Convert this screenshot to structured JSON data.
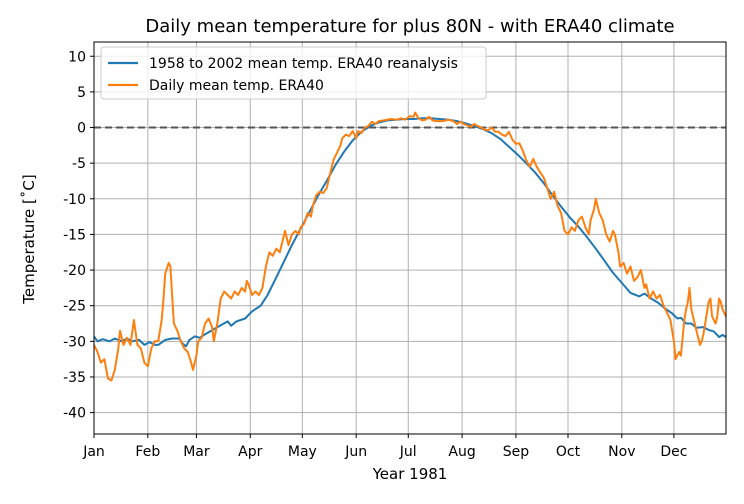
{
  "chart_data": {
    "type": "line",
    "title": "Daily mean temperature for plus 80N - with ERA40 climate",
    "xlabel": "Year 1981",
    "ylabel": "Temperature [$^\\circ$C]",
    "ylabel_display": "Temperature [˚C]",
    "xlim_days": [
      1,
      365
    ],
    "ylim": [
      -43,
      12
    ],
    "yticks": [
      10,
      5,
      0,
      -5,
      -10,
      -15,
      -20,
      -25,
      -30,
      -35,
      -40
    ],
    "xticks": [
      {
        "day": 1,
        "label": "Jan"
      },
      {
        "day": 32,
        "label": "Feb"
      },
      {
        "day": 60,
        "label": "Mar"
      },
      {
        "day": 91,
        "label": "Apr"
      },
      {
        "day": 121,
        "label": "May"
      },
      {
        "day": 152,
        "label": "Jun"
      },
      {
        "day": 182,
        "label": "Jul"
      },
      {
        "day": 213,
        "label": "Aug"
      },
      {
        "day": 244,
        "label": "Sep"
      },
      {
        "day": 274,
        "label": "Oct"
      },
      {
        "day": 305,
        "label": "Nov"
      },
      {
        "day": 335,
        "label": "Dec"
      }
    ],
    "grid": true,
    "legend_position": "upper-left",
    "reference_line": {
      "y": 0,
      "style": "dashed",
      "color": "#555555"
    },
    "series": [
      {
        "name": "1958 to 2002 mean temp. ERA40 reanalysis",
        "color": "#1f77b4",
        "points": [
          [
            1,
            -29.3
          ],
          [
            3,
            -30.0
          ],
          [
            6,
            -29.7
          ],
          [
            10,
            -30.0
          ],
          [
            13,
            -29.6
          ],
          [
            17,
            -30.0
          ],
          [
            20,
            -29.6
          ],
          [
            23,
            -30.0
          ],
          [
            27,
            -29.8
          ],
          [
            30,
            -30.5
          ],
          [
            33,
            -30.1
          ],
          [
            36,
            -30.5
          ],
          [
            38,
            -30.5
          ],
          [
            42,
            -29.8
          ],
          [
            46,
            -29.6
          ],
          [
            50,
            -29.6
          ],
          [
            52,
            -30.3
          ],
          [
            54,
            -30.7
          ],
          [
            56,
            -29.8
          ],
          [
            59,
            -29.3
          ],
          [
            62,
            -29.5
          ],
          [
            65,
            -29.0
          ],
          [
            70,
            -28.3
          ],
          [
            75,
            -27.6
          ],
          [
            78,
            -27.2
          ],
          [
            80,
            -27.8
          ],
          [
            83,
            -27.2
          ],
          [
            88,
            -26.8
          ],
          [
            92,
            -25.8
          ],
          [
            97,
            -25.0
          ],
          [
            101,
            -23.5
          ],
          [
            105,
            -21.5
          ],
          [
            110,
            -19.0
          ],
          [
            115,
            -16.5
          ],
          [
            120,
            -14.2
          ],
          [
            125,
            -11.9
          ],
          [
            130,
            -9.6
          ],
          [
            135,
            -7.5
          ],
          [
            140,
            -5.3
          ],
          [
            145,
            -3.4
          ],
          [
            150,
            -1.8
          ],
          [
            155,
            -0.6
          ],
          [
            160,
            0.2
          ],
          [
            165,
            0.7
          ],
          [
            170,
            1.0
          ],
          [
            175,
            1.1
          ],
          [
            180,
            1.2
          ],
          [
            185,
            1.2
          ],
          [
            190,
            1.3
          ],
          [
            195,
            1.3
          ],
          [
            200,
            1.2
          ],
          [
            205,
            1.1
          ],
          [
            210,
            0.9
          ],
          [
            215,
            0.6
          ],
          [
            220,
            0.2
          ],
          [
            225,
            -0.2
          ],
          [
            230,
            -0.8
          ],
          [
            235,
            -1.6
          ],
          [
            240,
            -2.7
          ],
          [
            245,
            -3.8
          ],
          [
            250,
            -5.0
          ],
          [
            255,
            -6.3
          ],
          [
            260,
            -7.8
          ],
          [
            265,
            -9.5
          ],
          [
            270,
            -11.1
          ],
          [
            275,
            -12.6
          ],
          [
            280,
            -13.9
          ],
          [
            285,
            -15.4
          ],
          [
            290,
            -17.0
          ],
          [
            295,
            -18.7
          ],
          [
            300,
            -20.4
          ],
          [
            305,
            -21.8
          ],
          [
            310,
            -23.2
          ],
          [
            315,
            -23.7
          ],
          [
            318,
            -23.3
          ],
          [
            322,
            -24.0
          ],
          [
            326,
            -24.6
          ],
          [
            330,
            -25.4
          ],
          [
            334,
            -26.1
          ],
          [
            337,
            -26.8
          ],
          [
            339,
            -26.7
          ],
          [
            342,
            -27.5
          ],
          [
            345,
            -27.5
          ],
          [
            348,
            -28.1
          ],
          [
            352,
            -28.0
          ],
          [
            355,
            -28.4
          ],
          [
            358,
            -28.6
          ],
          [
            361,
            -29.4
          ],
          [
            363,
            -29.1
          ],
          [
            365,
            -29.4
          ]
        ]
      },
      {
        "name": "Daily mean temp. ERA40",
        "color": "#ff7f0e",
        "points": [
          [
            1,
            -30.5
          ],
          [
            3,
            -31.5
          ],
          [
            5,
            -33.0
          ],
          [
            7,
            -32.5
          ],
          [
            9,
            -35.2
          ],
          [
            11,
            -35.5
          ],
          [
            13,
            -34.0
          ],
          [
            15,
            -31.0
          ],
          [
            16,
            -28.5
          ],
          [
            18,
            -30.5
          ],
          [
            20,
            -29.5
          ],
          [
            22,
            -30.5
          ],
          [
            24,
            -27.0
          ],
          [
            26,
            -30.5
          ],
          [
            28,
            -31.0
          ],
          [
            30,
            -33.0
          ],
          [
            32,
            -33.5
          ],
          [
            34,
            -31.0
          ],
          [
            36,
            -30.0
          ],
          [
            38,
            -30.0
          ],
          [
            40,
            -27.0
          ],
          [
            41,
            -24.0
          ],
          [
            42,
            -20.5
          ],
          [
            44,
            -19.0
          ],
          [
            45,
            -19.5
          ],
          [
            46,
            -23.5
          ],
          [
            47,
            -27.5
          ],
          [
            49,
            -28.5
          ],
          [
            51,
            -30.0
          ],
          [
            53,
            -31.0
          ],
          [
            55,
            -31.5
          ],
          [
            57,
            -33.0
          ],
          [
            58,
            -34.0
          ],
          [
            60,
            -32.0
          ],
          [
            61,
            -30.0
          ],
          [
            63,
            -29.5
          ],
          [
            65,
            -27.5
          ],
          [
            67,
            -26.8
          ],
          [
            69,
            -28.0
          ],
          [
            70,
            -30.0
          ],
          [
            72,
            -27.5
          ],
          [
            74,
            -24.0
          ],
          [
            76,
            -23.0
          ],
          [
            78,
            -23.5
          ],
          [
            80,
            -24.0
          ],
          [
            82,
            -23.0
          ],
          [
            84,
            -23.5
          ],
          [
            86,
            -22.5
          ],
          [
            88,
            -23.0
          ],
          [
            89,
            -21.5
          ],
          [
            90,
            -22.0
          ],
          [
            92,
            -23.5
          ],
          [
            94,
            -23.0
          ],
          [
            96,
            -23.5
          ],
          [
            98,
            -22.5
          ],
          [
            100,
            -19.5
          ],
          [
            102,
            -17.5
          ],
          [
            104,
            -18.0
          ],
          [
            106,
            -17.0
          ],
          [
            108,
            -17.5
          ],
          [
            110,
            -15.5
          ],
          [
            111,
            -14.5
          ],
          [
            113,
            -16.5
          ],
          [
            115,
            -15.0
          ],
          [
            117,
            -14.5
          ],
          [
            119,
            -15.0
          ],
          [
            120,
            -14.0
          ],
          [
            122,
            -13.5
          ],
          [
            124,
            -12.0
          ],
          [
            126,
            -12.5
          ],
          [
            127,
            -11.0
          ],
          [
            129,
            -9.5
          ],
          [
            131,
            -9.0
          ],
          [
            133,
            -9.2
          ],
          [
            135,
            -8.5
          ],
          [
            137,
            -6.5
          ],
          [
            139,
            -4.5
          ],
          [
            141,
            -3.5
          ],
          [
            143,
            -2.5
          ],
          [
            144,
            -1.5
          ],
          [
            146,
            -1.0
          ],
          [
            148,
            -1.2
          ],
          [
            150,
            -0.5
          ],
          [
            152,
            -1.5
          ],
          [
            153,
            -0.5
          ],
          [
            155,
            -0.8
          ],
          [
            157,
            0.0
          ],
          [
            159,
            0.2
          ],
          [
            161,
            0.8
          ],
          [
            163,
            0.5
          ],
          [
            165,
            0.9
          ],
          [
            168,
            1.0
          ],
          [
            172,
            1.2
          ],
          [
            175,
            1.1
          ],
          [
            178,
            1.3
          ],
          [
            180,
            1.1
          ],
          [
            183,
            1.6
          ],
          [
            185,
            1.5
          ],
          [
            186,
            2.1
          ],
          [
            188,
            1.3
          ],
          [
            190,
            1.0
          ],
          [
            192,
            1.1
          ],
          [
            194,
            1.5
          ],
          [
            196,
            1.0
          ],
          [
            198,
            0.9
          ],
          [
            202,
            0.9
          ],
          [
            205,
            1.1
          ],
          [
            208,
            0.9
          ],
          [
            210,
            0.5
          ],
          [
            212,
            0.8
          ],
          [
            214,
            0.5
          ],
          [
            216,
            0.3
          ],
          [
            218,
            0.1
          ],
          [
            220,
            0.5
          ],
          [
            222,
            0.2
          ],
          [
            224,
            0.0
          ],
          [
            226,
            -0.3
          ],
          [
            228,
            -0.4
          ],
          [
            230,
            0.0
          ],
          [
            232,
            -0.6
          ],
          [
            234,
            -0.6
          ],
          [
            236,
            -1.0
          ],
          [
            238,
            -1.2
          ],
          [
            240,
            -0.6
          ],
          [
            242,
            -1.7
          ],
          [
            244,
            -2.3
          ],
          [
            246,
            -2.2
          ],
          [
            248,
            -3.3
          ],
          [
            250,
            -4.6
          ],
          [
            252,
            -5.5
          ],
          [
            254,
            -4.4
          ],
          [
            256,
            -5.5
          ],
          [
            258,
            -6.3
          ],
          [
            260,
            -7.0
          ],
          [
            262,
            -8.5
          ],
          [
            264,
            -10.0
          ],
          [
            266,
            -9.0
          ],
          [
            268,
            -11.0
          ],
          [
            270,
            -12.0
          ],
          [
            272,
            -14.5
          ],
          [
            274,
            -15.0
          ],
          [
            276,
            -14.0
          ],
          [
            278,
            -14.5
          ],
          [
            280,
            -13.0
          ],
          [
            282,
            -12.5
          ],
          [
            284,
            -14.0
          ],
          [
            286,
            -15.0
          ],
          [
            287,
            -13.0
          ],
          [
            289,
            -11.5
          ],
          [
            290,
            -10.0
          ],
          [
            292,
            -12.0
          ],
          [
            294,
            -13.0
          ],
          [
            296,
            -15.0
          ],
          [
            298,
            -16.0
          ],
          [
            300,
            -14.5
          ],
          [
            301,
            -15.0
          ],
          [
            303,
            -17.5
          ],
          [
            304,
            -19.5
          ],
          [
            306,
            -19.0
          ],
          [
            308,
            -20.5
          ],
          [
            310,
            -19.5
          ],
          [
            312,
            -21.5
          ],
          [
            314,
            -21.0
          ],
          [
            316,
            -20.0
          ],
          [
            318,
            -22.5
          ],
          [
            319,
            -22.0
          ],
          [
            321,
            -24.0
          ],
          [
            323,
            -23.0
          ],
          [
            325,
            -24.0
          ],
          [
            327,
            -23.5
          ],
          [
            329,
            -25.0
          ],
          [
            331,
            -26.0
          ],
          [
            333,
            -27.0
          ],
          [
            335,
            -30.0
          ],
          [
            336,
            -32.5
          ],
          [
            338,
            -31.5
          ],
          [
            339,
            -32.0
          ],
          [
            340,
            -29.5
          ],
          [
            341,
            -27.0
          ],
          [
            342,
            -25.5
          ],
          [
            343,
            -24.5
          ],
          [
            344,
            -22.5
          ],
          [
            345,
            -25.5
          ],
          [
            347,
            -27.5
          ],
          [
            349,
            -29.5
          ],
          [
            350,
            -30.5
          ],
          [
            351,
            -30.0
          ],
          [
            352,
            -29.0
          ],
          [
            353,
            -27.5
          ],
          [
            354,
            -26.0
          ],
          [
            355,
            -24.5
          ],
          [
            356,
            -24.0
          ],
          [
            357,
            -26.5
          ],
          [
            359,
            -27.5
          ],
          [
            360,
            -26.5
          ],
          [
            361,
            -24.0
          ],
          [
            362,
            -24.5
          ],
          [
            363,
            -25.5
          ],
          [
            365,
            -26.5
          ]
        ]
      }
    ]
  }
}
